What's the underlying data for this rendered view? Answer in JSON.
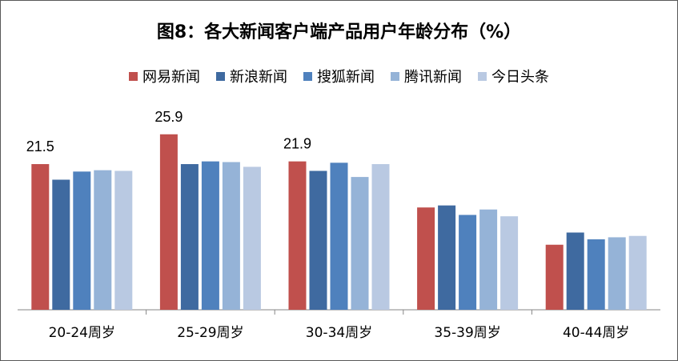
{
  "title": "图8：各大新闻客户端产品用户年龄分布（%）",
  "chart_data": {
    "type": "bar",
    "title": "图8：各大新闻客户端产品用户年龄分布（%）",
    "xlabel": "",
    "ylabel": "",
    "legend_position": "top",
    "grid": false,
    "ylim": [
      0,
      28
    ],
    "categories": [
      "20-24周岁",
      "25-29周岁",
      "30-34周岁",
      "35-39周岁",
      "40-44周岁"
    ],
    "series": [
      {
        "name": "网易新闻",
        "color": "#C0504D",
        "values": [
          21.5,
          25.9,
          21.9,
          15.1,
          9.6
        ]
      },
      {
        "name": "新浪新闻",
        "color": "#3F6AA0",
        "values": [
          19.2,
          21.5,
          20.5,
          15.4,
          11.4
        ]
      },
      {
        "name": "搜狐新闻",
        "color": "#4F81BD",
        "values": [
          20.4,
          21.9,
          21.7,
          14.0,
          10.4
        ]
      },
      {
        "name": "腾讯新闻",
        "color": "#95B3D7",
        "values": [
          20.6,
          21.8,
          19.6,
          14.8,
          10.7
        ]
      },
      {
        "name": "今日头条",
        "color": "#B9C9E2",
        "values": [
          20.5,
          21.1,
          21.5,
          13.8,
          10.9
        ]
      }
    ],
    "data_labels": [
      {
        "category": "20-24周岁",
        "series": "网易新闻",
        "text": "21.5"
      },
      {
        "category": "25-29周岁",
        "series": "网易新闻",
        "text": "25.9"
      },
      {
        "category": "30-34周岁",
        "series": "网易新闻",
        "text": "21.9"
      }
    ]
  }
}
